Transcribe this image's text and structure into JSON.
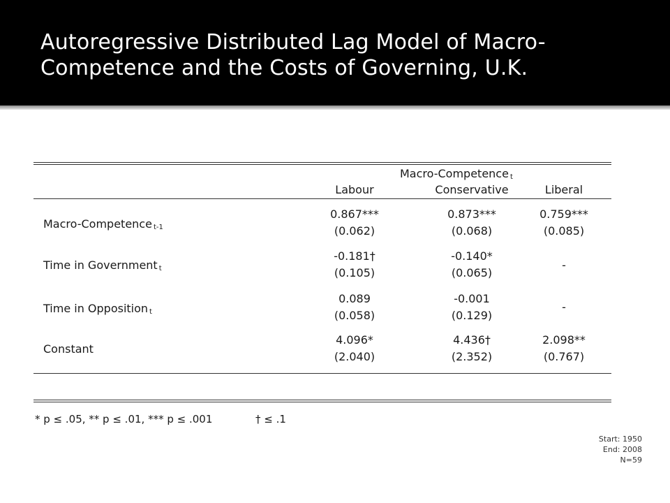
{
  "slide": {
    "title": "Autoregressive Distributed Lag Model of Macro-Competence and the Costs of Governing, U.K."
  },
  "table": {
    "header_group": "Macro-Competence",
    "header_group_sub": "t",
    "columns": [
      "Labour",
      "Conservative",
      "Liberal"
    ],
    "rows": [
      {
        "label": "Macro-Competence",
        "label_sub": "t-1",
        "coef": [
          "0.867***",
          "0.873***",
          "0.759***"
        ],
        "se": [
          "(0.062)",
          "(0.068)",
          "(0.085)"
        ]
      },
      {
        "label": "Time in Government",
        "label_sub": "t",
        "coef": [
          "-0.181†",
          "-0.140*",
          "-"
        ],
        "se": [
          "(0.105)",
          "(0.065)",
          ""
        ]
      },
      {
        "label": "Time in Opposition",
        "label_sub": "t",
        "coef": [
          "0.089",
          "-0.001",
          "-"
        ],
        "se": [
          "(0.058)",
          "(0.129)",
          ""
        ]
      },
      {
        "label": "Constant",
        "label_sub": "",
        "coef": [
          "4.096*",
          "4.436†",
          "2.098**"
        ],
        "se": [
          "(2.040)",
          "(2.352)",
          "(0.767)"
        ]
      }
    ]
  },
  "footnotes": {
    "significance": "* p ≤ .05, ** p ≤ .01, *** p ≤ .001",
    "dagger": "† ≤ .1"
  },
  "sample": {
    "start": "Start: 1950",
    "end": "End: 2008",
    "n": "N=59"
  }
}
